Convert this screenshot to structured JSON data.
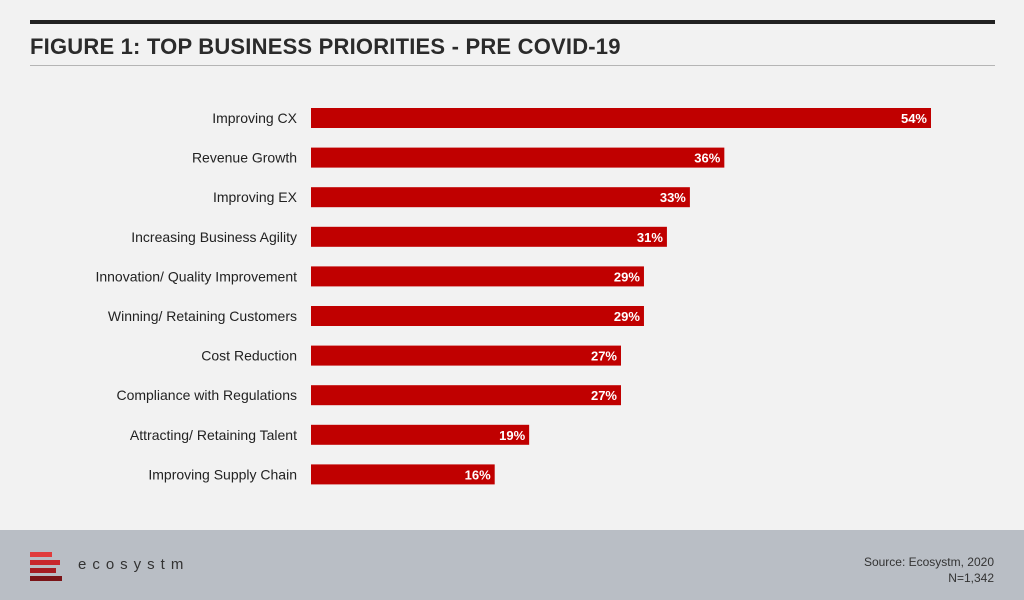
{
  "title": "FIGURE 1: TOP BUSINESS PRIORITIES - PRE COVID-19",
  "footer": {
    "logo_text": "ecosystm",
    "source": "Source: Ecosystm, 2020",
    "sample": "N=1,342"
  },
  "colors": {
    "bar": "#c00000",
    "background": "#f2f2f2",
    "footer": "#b9bec5",
    "logo_red": "#e03c3c"
  },
  "chart_data": {
    "type": "bar",
    "orientation": "horizontal",
    "categories": [
      "Improving CX",
      "Revenue Growth",
      "Improving EX",
      "Increasing Business Agility",
      "Innovation/ Quality Improvement",
      "Winning/ Retaining Customers",
      "Cost Reduction",
      "Compliance with Regulations",
      "Attracting/ Retaining Talent",
      "Improving Supply Chain"
    ],
    "values": [
      54,
      36,
      33,
      31,
      29,
      29,
      27,
      27,
      19,
      16
    ],
    "value_labels": [
      "54%",
      "36%",
      "33%",
      "31%",
      "29%",
      "29%",
      "27%",
      "27%",
      "19%",
      "16%"
    ],
    "unit": "%",
    "grid": false
  }
}
